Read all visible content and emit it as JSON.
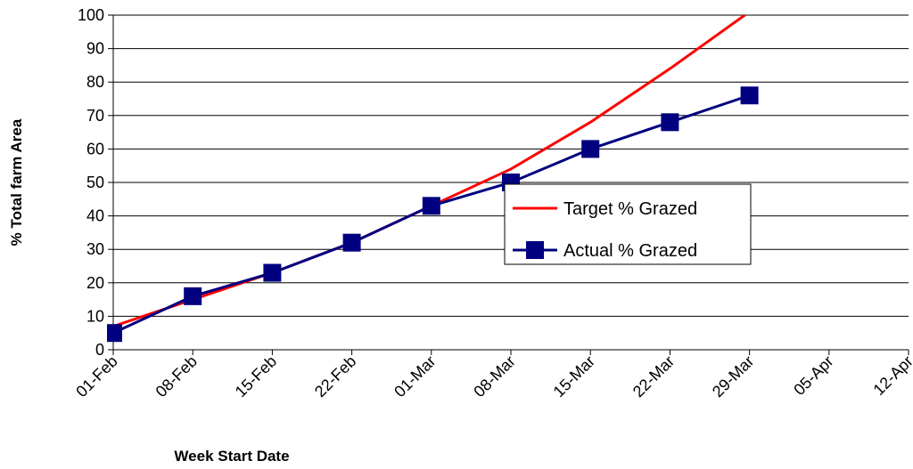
{
  "chart_data": {
    "type": "line",
    "xlabel": "Week Start Date",
    "ylabel": "% Total farm Area",
    "x": [
      "01-Feb",
      "08-Feb",
      "15-Feb",
      "22-Feb",
      "01-Mar",
      "08-Mar",
      "15-Mar",
      "22-Mar",
      "29-Mar"
    ],
    "series": [
      {
        "name": "Target % Grazed",
        "color": "#ff0000",
        "marker": "none",
        "values": [
          7,
          15,
          23,
          32,
          43,
          54,
          68,
          84,
          101
        ]
      },
      {
        "name": "Actual % Grazed",
        "color": "#000080",
        "marker": "square",
        "values": [
          5,
          16,
          23,
          32,
          43,
          50,
          60,
          68,
          76
        ]
      }
    ],
    "xlim": [
      "01-Feb",
      "12-Apr"
    ],
    "xticks": [
      "01-Feb",
      "08-Feb",
      "15-Feb",
      "22-Feb",
      "01-Mar",
      "08-Mar",
      "15-Mar",
      "22-Mar",
      "29-Mar",
      "05-Apr",
      "12-Apr"
    ],
    "ylim": [
      0,
      100
    ],
    "yticks": [
      0,
      10,
      20,
      30,
      40,
      50,
      60,
      70,
      80,
      90,
      100
    ],
    "grid": true,
    "legend": "right"
  }
}
